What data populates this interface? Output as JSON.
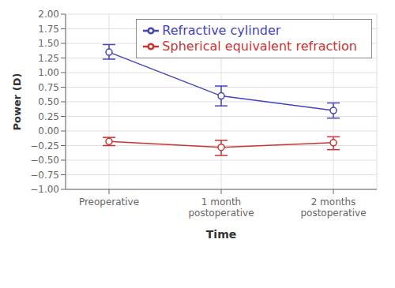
{
  "chart_data": {
    "type": "line",
    "xlabel": "Time",
    "ylabel": "Power (D)",
    "categories": [
      "Preoperative",
      "1 month\npostoperative",
      "2 months\npostoperative"
    ],
    "series": [
      {
        "name": "Refractive cylinder",
        "color": "#4444bb",
        "marker": "circle",
        "values": [
          1.35,
          0.6,
          0.35
        ],
        "yerr_lower": [
          0.12,
          0.17,
          0.13
        ],
        "yerr_upper": [
          0.13,
          0.17,
          0.13
        ]
      },
      {
        "name": "Spherical equivalent refraction",
        "color": "#cc3333",
        "marker": "circle",
        "values": [
          -0.18,
          -0.28,
          -0.2
        ],
        "yerr_lower": [
          0.07,
          0.14,
          0.12
        ],
        "yerr_upper": [
          0.07,
          0.12,
          0.1
        ]
      }
    ],
    "ylim": [
      -1.0,
      2.0
    ],
    "yticks": [
      {
        "value": -1.0,
        "label": "−1.00"
      },
      {
        "value": -0.75,
        "label": "−0.75"
      },
      {
        "value": -0.5,
        "label": "−0.50"
      },
      {
        "value": -0.25,
        "label": "−0.25"
      },
      {
        "value": 0.0,
        "label": "0.00"
      },
      {
        "value": 0.25,
        "label": "0.25"
      },
      {
        "value": 0.5,
        "label": "0.50"
      },
      {
        "value": 0.75,
        "label": "0.75"
      },
      {
        "value": 1.0,
        "label": "1.00"
      },
      {
        "value": 1.25,
        "label": "1.25"
      },
      {
        "value": 1.5,
        "label": "1.50"
      },
      {
        "value": 1.75,
        "label": "1.75"
      },
      {
        "value": 2.0,
        "label": "2.00"
      }
    ],
    "grid": true,
    "legend": "upper right"
  }
}
